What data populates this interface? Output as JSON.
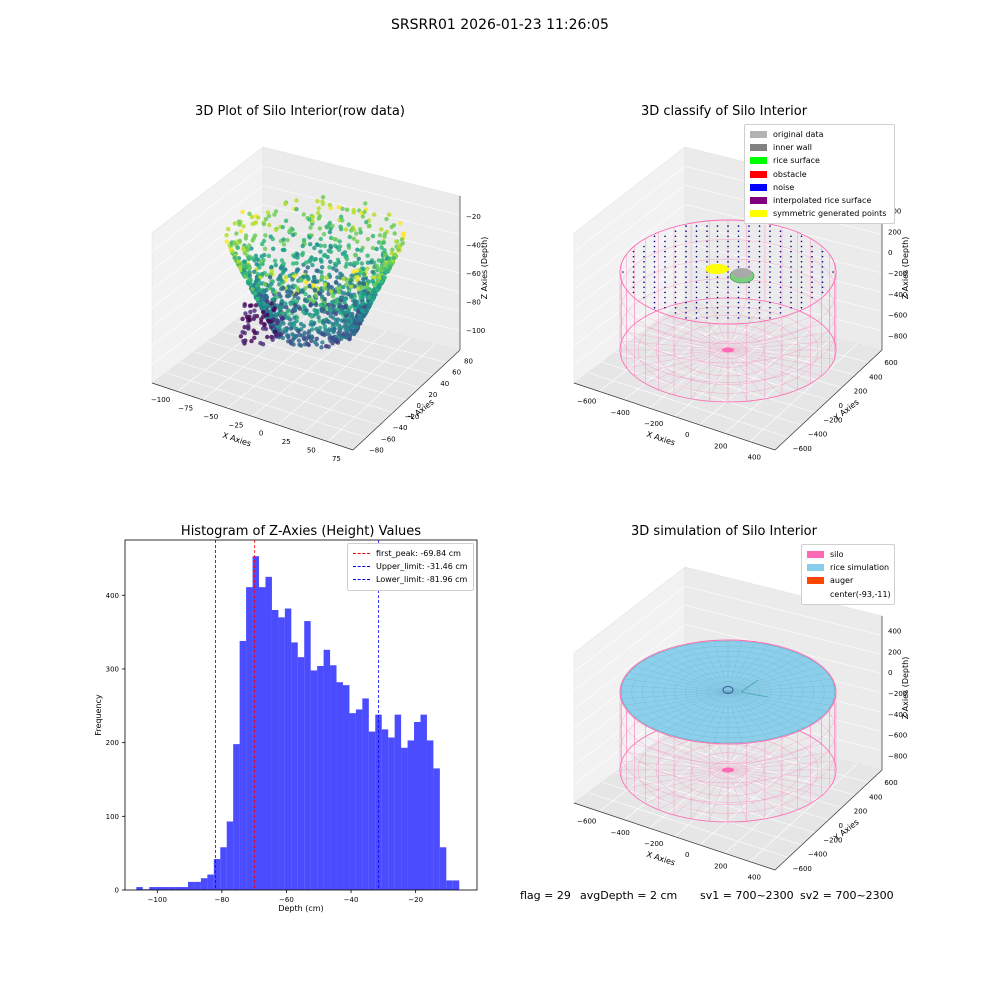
{
  "figure": {
    "suptitle": "SRSRR01 2026-01-23 11:26:05"
  },
  "panels": {
    "raw": {
      "title": "3D Plot of Silo Interior(row data)",
      "xlabel": "X Axies",
      "ylabel": "Y Axies",
      "zlabel": "Z Axies (Depth)",
      "xticks": [
        "−100",
        "−75",
        "−50",
        "−25",
        "0",
        "25",
        "50",
        "75"
      ],
      "yticks": [
        "−80",
        "−60",
        "−40",
        "−20",
        "0",
        "20",
        "40",
        "60",
        "80"
      ],
      "zticks": [
        "−20",
        "−40",
        "−60",
        "−80",
        "−100"
      ]
    },
    "classify": {
      "title": "3D classify of Silo Interior",
      "xlabel": "X Axies",
      "ylabel": "Y Axies",
      "zlabel": "Z Axies (Depth)",
      "xticks": [
        "−600",
        "−400",
        "−200",
        "0",
        "200",
        "400"
      ],
      "yticks": [
        "−600",
        "−400",
        "−200",
        "0",
        "200",
        "400",
        "600"
      ],
      "zticks": [
        "400",
        "200",
        "0",
        "−200",
        "−400",
        "−600",
        "−800"
      ],
      "legend": [
        {
          "label": "original data",
          "color": "#b3b3b3"
        },
        {
          "label": "inner wall",
          "color": "#808080"
        },
        {
          "label": "rice surface",
          "color": "#00ff00"
        },
        {
          "label": "obstacle",
          "color": "#ff0000"
        },
        {
          "label": "noise",
          "color": "#0000ff"
        },
        {
          "label": "interpolated rice surface",
          "color": "#800080"
        },
        {
          "label": "symmetric generated points",
          "color": "#ffff00"
        }
      ]
    },
    "simulation": {
      "title": "3D simulation of Silo Interior",
      "xlabel": "X Axies",
      "ylabel": "Y Axies",
      "zlabel": "Z Axies (Depth)",
      "xticks": [
        "−600",
        "−400",
        "−200",
        "0",
        "200",
        "400"
      ],
      "yticks": [
        "−600",
        "−400",
        "−200",
        "0",
        "200",
        "400",
        "600"
      ],
      "zticks": [
        "400",
        "200",
        "0",
        "−200",
        "−400",
        "−600",
        "−800"
      ],
      "legend": [
        {
          "label": "silo",
          "color": "#ff69b4"
        },
        {
          "label": "rice simulation",
          "color": "#87ceeb"
        },
        {
          "label": "auger",
          "color": "#ff4500"
        },
        {
          "label": "center(-93,-11)",
          "color": ""
        }
      ]
    }
  },
  "footer": {
    "flag": "flag = 29",
    "avg": "avgDepth = 2 cm",
    "sv1": "sv1 = 700~2300",
    "sv2": "sv2 = 700~2300"
  },
  "chart_data": [
    {
      "type": "histogram",
      "title": "Histogram of Z-Axies (Height) Values",
      "xlabel": "Depth (cm)",
      "ylabel": "Frequency",
      "xlim": [
        -110,
        -1
      ],
      "ylim": [
        0,
        475
      ],
      "xticks": [
        -100,
        -80,
        -60,
        -40,
        -20
      ],
      "yticks": [
        0,
        100,
        200,
        300,
        400
      ],
      "bar_color": "#0000ff",
      "bins": [
        {
          "x0": -106.5,
          "x1": -104.5,
          "count": 4
        },
        {
          "x0": -104.5,
          "x1": -102.5,
          "count": 1
        },
        {
          "x0": -102.5,
          "x1": -100.5,
          "count": 4
        },
        {
          "x0": -100.5,
          "x1": -98.5,
          "count": 4
        },
        {
          "x0": -98.5,
          "x1": -96.5,
          "count": 4
        },
        {
          "x0": -96.5,
          "x1": -94.5,
          "count": 4
        },
        {
          "x0": -94.5,
          "x1": -92.5,
          "count": 4
        },
        {
          "x0": -92.5,
          "x1": -90.5,
          "count": 4
        },
        {
          "x0": -90.5,
          "x1": -88.5,
          "count": 11
        },
        {
          "x0": -88.5,
          "x1": -86.5,
          "count": 11
        },
        {
          "x0": -86.5,
          "x1": -84.5,
          "count": 16
        },
        {
          "x0": -84.5,
          "x1": -82.5,
          "count": 21
        },
        {
          "x0": -82.5,
          "x1": -80.5,
          "count": 42
        },
        {
          "x0": -80.5,
          "x1": -78.5,
          "count": 58
        },
        {
          "x0": -78.5,
          "x1": -76.5,
          "count": 93
        },
        {
          "x0": -76.5,
          "x1": -74.5,
          "count": 198
        },
        {
          "x0": -74.5,
          "x1": -72.5,
          "count": 338
        },
        {
          "x0": -72.5,
          "x1": -70.5,
          "count": 411
        },
        {
          "x0": -70.5,
          "x1": -68.5,
          "count": 453
        },
        {
          "x0": -68.5,
          "x1": -66.5,
          "count": 411
        },
        {
          "x0": -66.5,
          "x1": -64.5,
          "count": 425
        },
        {
          "x0": -64.5,
          "x1": -62.5,
          "count": 380
        },
        {
          "x0": -62.5,
          "x1": -60.5,
          "count": 370
        },
        {
          "x0": -60.5,
          "x1": -58.5,
          "count": 382
        },
        {
          "x0": -58.5,
          "x1": -56.5,
          "count": 336
        },
        {
          "x0": -56.5,
          "x1": -54.5,
          "count": 316
        },
        {
          "x0": -54.5,
          "x1": -52.5,
          "count": 365
        },
        {
          "x0": -52.5,
          "x1": -50.5,
          "count": 298
        },
        {
          "x0": -50.5,
          "x1": -48.5,
          "count": 304
        },
        {
          "x0": -48.5,
          "x1": -46.5,
          "count": 326
        },
        {
          "x0": -46.5,
          "x1": -44.5,
          "count": 305
        },
        {
          "x0": -44.5,
          "x1": -42.5,
          "count": 282
        },
        {
          "x0": -42.5,
          "x1": -40.5,
          "count": 278
        },
        {
          "x0": -40.5,
          "x1": -38.5,
          "count": 240
        },
        {
          "x0": -38.5,
          "x1": -36.5,
          "count": 245
        },
        {
          "x0": -36.5,
          "x1": -34.5,
          "count": 260
        },
        {
          "x0": -34.5,
          "x1": -32.5,
          "count": 215
        },
        {
          "x0": -32.5,
          "x1": -30.5,
          "count": 238
        },
        {
          "x0": -30.5,
          "x1": -28.5,
          "count": 218
        },
        {
          "x0": -28.5,
          "x1": -26.5,
          "count": 207
        },
        {
          "x0": -26.5,
          "x1": -24.5,
          "count": 238
        },
        {
          "x0": -24.5,
          "x1": -22.5,
          "count": 193
        },
        {
          "x0": -22.5,
          "x1": -20.5,
          "count": 203
        },
        {
          "x0": -20.5,
          "x1": -18.5,
          "count": 228
        },
        {
          "x0": -18.5,
          "x1": -16.5,
          "count": 238
        },
        {
          "x0": -16.5,
          "x1": -14.5,
          "count": 203
        },
        {
          "x0": -14.5,
          "x1": -12.5,
          "count": 165
        },
        {
          "x0": -12.5,
          "x1": -10.5,
          "count": 58
        },
        {
          "x0": -10.5,
          "x1": -8.5,
          "count": 13
        },
        {
          "x0": -8.5,
          "x1": -6.5,
          "count": 13
        }
      ],
      "vlines": [
        {
          "x": -69.84,
          "color": "#ff0000",
          "label": "first_peak: -69.84 cm"
        },
        {
          "x": -31.46,
          "color": "#0000ff",
          "label": "Upper_limit: -31.46 cm"
        },
        {
          "x": -81.96,
          "color": "#0000ff",
          "label": "Lower_limit: -81.96 cm"
        }
      ],
      "legend_position": "top-right"
    }
  ]
}
